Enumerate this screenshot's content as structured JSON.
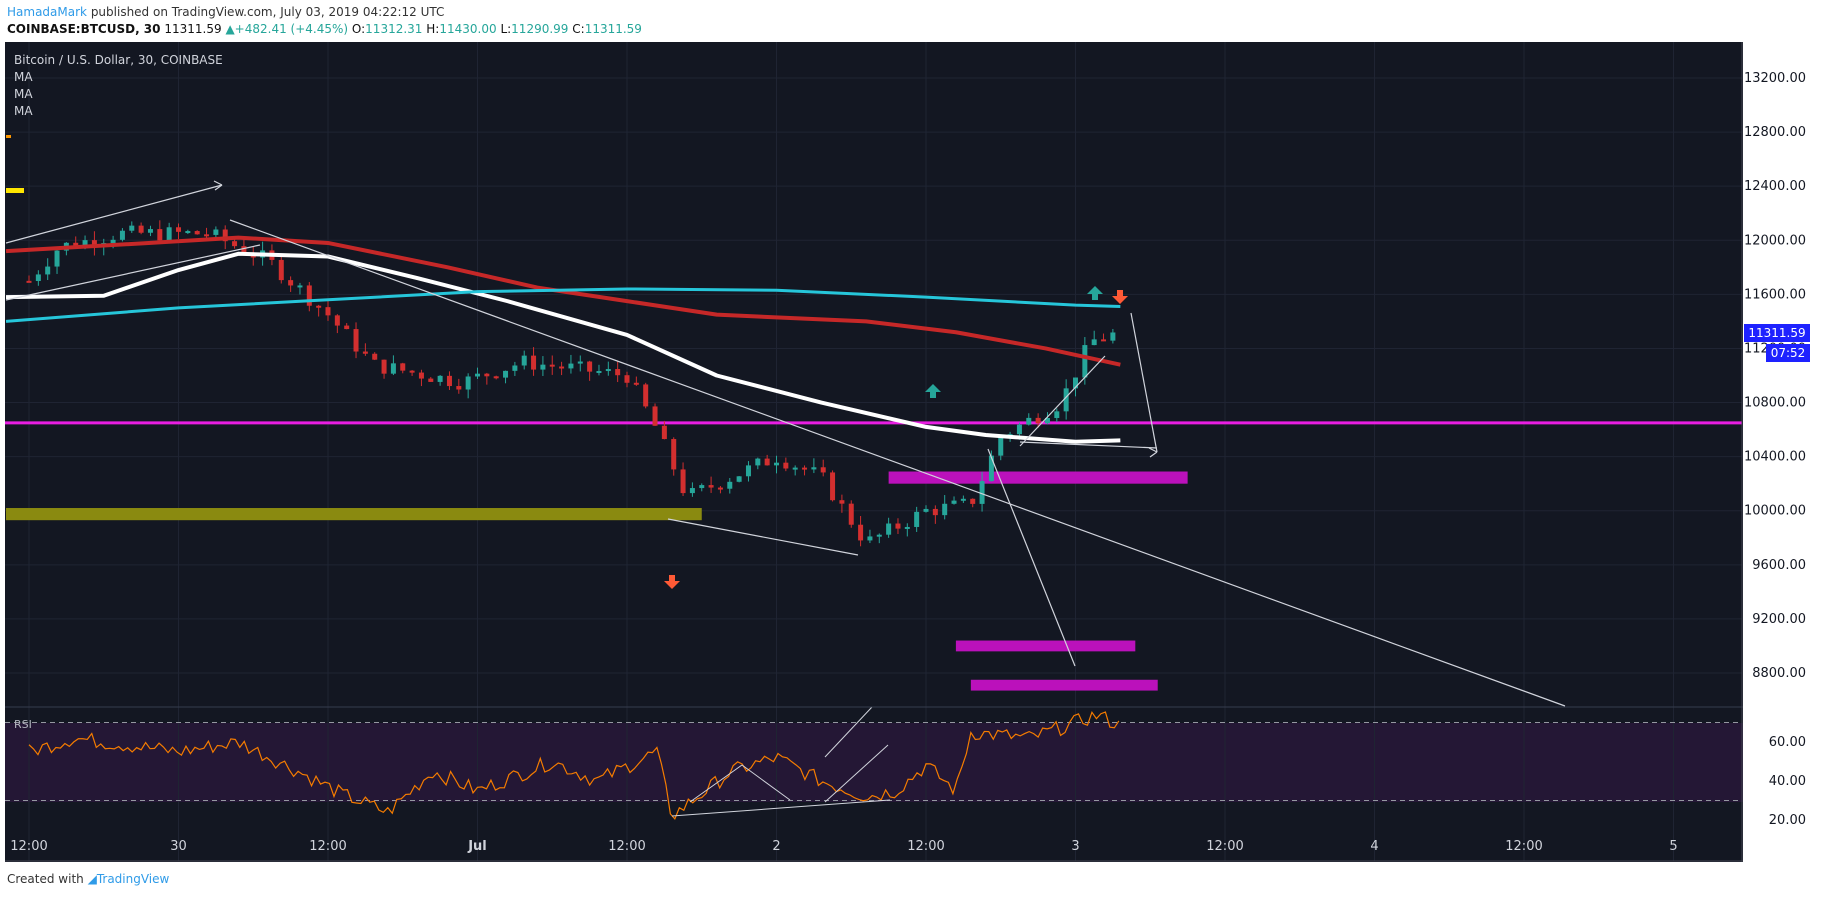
{
  "header": {
    "author": "HamadaMark",
    "published_text": "published on TradingView.com, July 03, 2019 04:22:12 UTC"
  },
  "quote": {
    "symbol": "COINBASE:BTCUSD, 30",
    "last": "11311.59",
    "change": "▲+482.41 (+4.45%)",
    "o_label": "O:",
    "o": "11312.31",
    "h_label": "H:",
    "h": "11430.00",
    "l_label": "L:",
    "l": "11290.99",
    "c_label": "C:",
    "c": "11311.59"
  },
  "legend": {
    "title": "Bitcoin / U.S. Dollar, 30, COINBASE",
    "ma_items": [
      "MA",
      "MA",
      "MA"
    ]
  },
  "price_badge": {
    "price": "11311.59",
    "countdown": "07:52"
  },
  "rsi_label": "RSI",
  "footer": {
    "created_with": "Created with",
    "brand": "TradingView"
  },
  "colors": {
    "background": "#131722",
    "rsi_band": "#241735",
    "candle_up": "#26a69a",
    "candle_down": "#d32f2f",
    "ma_fast": "#ffffff",
    "ma_mid": "#c62828",
    "ma_slow": "#26c6da",
    "support": "#e91ee3",
    "zone": "#bb11bb",
    "olive_zone": "#8a8a10",
    "rsi_line": "#f57c00"
  },
  "chart_data": {
    "type": "candlestick",
    "title": "Bitcoin / U.S. Dollar, 30, COINBASE",
    "price_axis": {
      "ticks": [
        13200,
        12800,
        12400,
        12000,
        11600,
        11200,
        10800,
        10400,
        10000,
        9600,
        9200,
        8800
      ],
      "tick_labels": [
        "13200.00",
        "12800.00",
        "12400.00",
        "12000.00",
        "11600.00",
        "11200.00",
        "10800.00",
        "10400.00",
        "10000.00",
        "9600.00",
        "9200.00",
        "8800.00"
      ]
    },
    "time_axis": {
      "labels": [
        "12:00",
        "30",
        "12:00",
        "Jul",
        "12:00",
        "2",
        "12:00",
        "3",
        "12:00",
        "4",
        "12:00",
        "5"
      ],
      "positions": [
        0,
        1,
        2,
        3,
        4,
        5,
        6,
        7,
        8,
        9,
        10,
        11
      ]
    },
    "last_price": 11311.59,
    "moving_averages": [
      {
        "color": "white",
        "points": [
          [
            0,
            11580
          ],
          [
            0.5,
            11590
          ],
          [
            1,
            11780
          ],
          [
            1.4,
            11900
          ],
          [
            2,
            11880
          ],
          [
            2.6,
            11720
          ],
          [
            3.2,
            11550
          ],
          [
            4,
            11300
          ],
          [
            4.6,
            11000
          ],
          [
            5.3,
            10800
          ],
          [
            6,
            10620
          ],
          [
            6.4,
            10560
          ],
          [
            7,
            10510
          ],
          [
            7.3,
            10520
          ]
        ]
      },
      {
        "color": "red",
        "points": [
          [
            0,
            11920
          ],
          [
            0.8,
            11980
          ],
          [
            1.4,
            12020
          ],
          [
            2,
            11980
          ],
          [
            2.8,
            11800
          ],
          [
            3.4,
            11650
          ],
          [
            4,
            11550
          ],
          [
            4.6,
            11450
          ],
          [
            5.6,
            11400
          ],
          [
            6.2,
            11320
          ],
          [
            6.8,
            11200
          ],
          [
            7.3,
            11080
          ]
        ]
      },
      {
        "color": "cyan",
        "points": [
          [
            0,
            11400
          ],
          [
            1,
            11500
          ],
          [
            2,
            11560
          ],
          [
            3,
            11620
          ],
          [
            4,
            11640
          ],
          [
            5,
            11630
          ],
          [
            6,
            11580
          ],
          [
            7,
            11520
          ],
          [
            7.3,
            11510
          ]
        ]
      }
    ],
    "horizontal_levels": [
      10650
    ],
    "zones": [
      {
        "from": 0,
        "to": 4.5,
        "low": 9930,
        "high": 10020,
        "color": "olive"
      },
      {
        "from": 5.75,
        "to": 7.75,
        "low": 10200,
        "high": 10290,
        "color": "magenta"
      },
      {
        "from": 6.2,
        "to": 7.4,
        "low": 8960,
        "high": 9040,
        "color": "magenta"
      },
      {
        "from": 6.3,
        "to": 7.55,
        "low": 8670,
        "high": 8750,
        "color": "magenta"
      }
    ],
    "rsi": {
      "ticks": [
        60,
        40,
        20
      ],
      "tick_labels": [
        "60.00",
        "40.00",
        "20.00"
      ],
      "overbought": 70,
      "oversold": 30
    }
  }
}
